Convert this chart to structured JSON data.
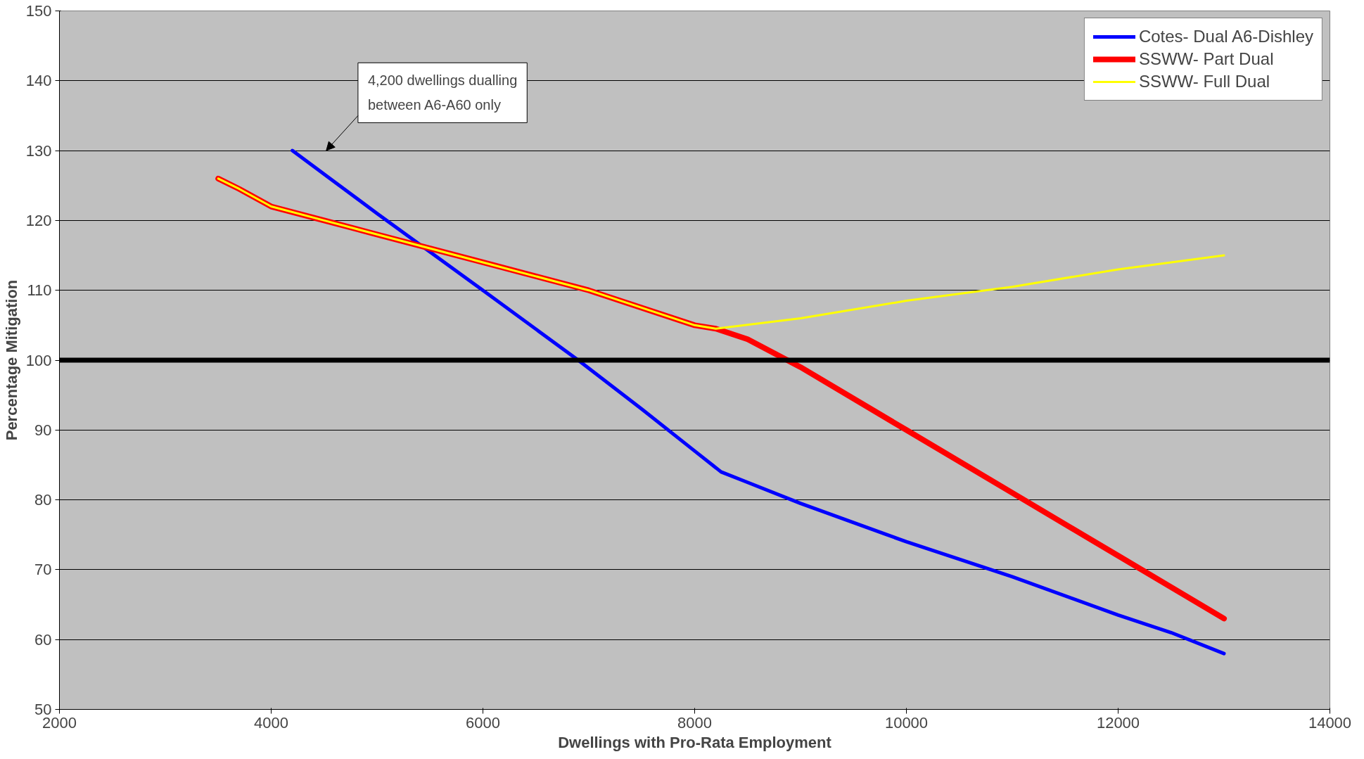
{
  "chart_data": {
    "type": "line",
    "xlabel": "Dwellings with Pro-Rata Employment",
    "ylabel": "Percentage Mitigation",
    "xlim": [
      2000,
      14000
    ],
    "xticks": [
      2000,
      4000,
      6000,
      8000,
      10000,
      12000,
      14000
    ],
    "ylim": [
      50,
      150
    ],
    "yticks": [
      50,
      60,
      70,
      80,
      90,
      100,
      110,
      120,
      130,
      140,
      150
    ],
    "grid": "y",
    "legend": "top right",
    "line_style": "solid",
    "marker": "none",
    "series": [
      {
        "name": "Cotes- Dual A6-Dishley",
        "color": "#0000ff",
        "x": [
          4200,
          5000,
          6000,
          6900,
          7500,
          8000,
          8250,
          8500,
          9000,
          10000,
          11000,
          12000,
          12500,
          13000
        ],
        "values": [
          130,
          121,
          110,
          100,
          93,
          87,
          84,
          82.5,
          79.5,
          74,
          69,
          63.5,
          61,
          58
        ]
      },
      {
        "name": "SSWW- Part Dual",
        "color": "#ff0000",
        "x": [
          3500,
          3700,
          4000,
          4500,
          5000,
          6000,
          7000,
          8000,
          8200,
          8500,
          9000,
          10000,
          11000,
          12000,
          13000
        ],
        "values": [
          126,
          124.5,
          122,
          120,
          118,
          114,
          110,
          105,
          104.5,
          103,
          99,
          90,
          81,
          72,
          63
        ]
      },
      {
        "name": "SSWW- Full Dual",
        "color": "#ffff00",
        "x": [
          3500,
          3700,
          4000,
          4500,
          5000,
          6000,
          7000,
          8000,
          8200,
          9000,
          10000,
          11000,
          12000,
          13000
        ],
        "values": [
          126,
          124.5,
          122,
          120,
          118,
          114,
          110,
          105,
          104.5,
          106,
          108.5,
          110.5,
          113,
          115
        ]
      }
    ],
    "ref_lines": [
      {
        "axis": "y",
        "value": 100,
        "color": "#000000"
      }
    ],
    "annotations": [
      "4,200 dwellings dualling\nbetween A6-A60 only"
    ]
  }
}
